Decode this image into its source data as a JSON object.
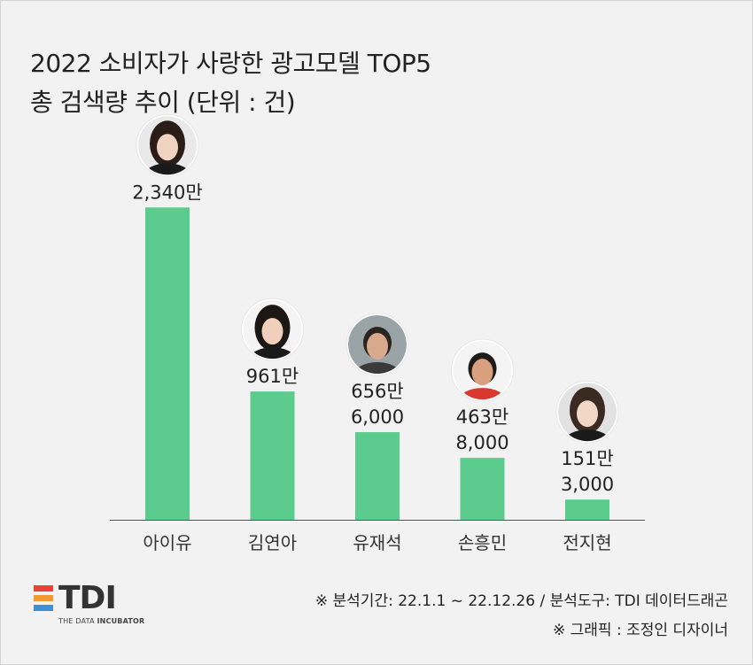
{
  "title_lines": [
    "2022 소비자가 사랑한 광고모델 TOP5",
    "총 검색량 추이 (단위 : 건)"
  ],
  "chart_data": {
    "type": "bar",
    "title": "2022 소비자가 사랑한 광고모델 TOP5 총 검색량 추이 (단위 : 건)",
    "categories": [
      "아이유",
      "김연아",
      "유재석",
      "손흥민",
      "전지현"
    ],
    "values": [
      23400000,
      9610000,
      6566000,
      4638000,
      1513000
    ],
    "value_labels": [
      [
        "2,340만"
      ],
      [
        "961만"
      ],
      [
        "656만",
        "6,000"
      ],
      [
        "463만",
        "8,000"
      ],
      [
        "151만",
        "3,000"
      ]
    ],
    "ylim": [
      0,
      26000000
    ],
    "grid": false,
    "bar_color": "#5ccc8e",
    "portraits": [
      "portrait-iu",
      "portrait-kim-yuna",
      "portrait-yoo-jaesuk",
      "portrait-son-heungmin",
      "portrait-jun-jihyun"
    ]
  },
  "footer": {
    "source": "※ 분석기간: 22.1.1 ~ 22.12.26 / 분석도구: TDI 데이터드래곤",
    "credit": "※ 그래픽 : 조정인 디자이너"
  },
  "logo": {
    "word": "TDI",
    "sub_a": "THE DATA ",
    "sub_b": "INCUBATOR",
    "colors": [
      "#e8433b",
      "#f29a2e",
      "#3d8fd6"
    ]
  }
}
